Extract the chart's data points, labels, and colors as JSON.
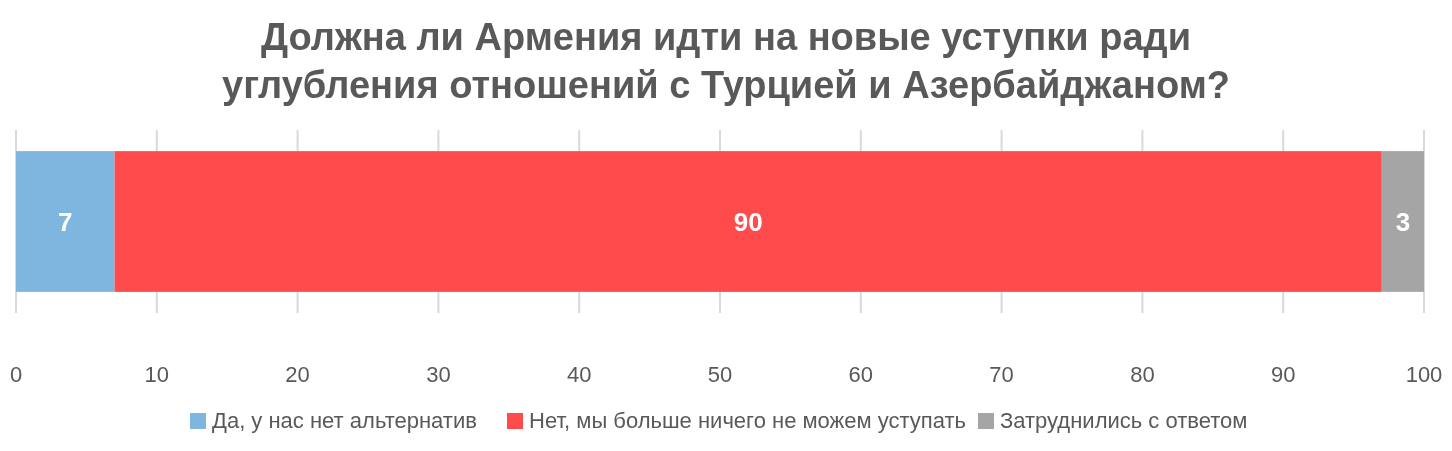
{
  "chart_data": {
    "type": "bar",
    "orientation": "horizontal",
    "stacked": true,
    "title": "Должна ли Армения идти на новые уступки ради углубления отношений с Турцией и Азербайджаном?",
    "categories": [
      null
    ],
    "series": [
      {
        "name": "Да, у нас нет альтернатив",
        "color": "#7eb6e0",
        "values": [
          7
        ]
      },
      {
        "name": "Нет, мы больше ничего не можем уступать",
        "color": "#ff4b4b",
        "values": [
          90
        ]
      },
      {
        "name": "Затруднились с ответом",
        "color": "#a5a5a5",
        "values": [
          3
        ]
      }
    ],
    "xlim": [
      0,
      100
    ],
    "xticks": [
      0,
      10,
      20,
      30,
      40,
      50,
      60,
      70,
      80,
      90,
      100
    ],
    "grid": "x",
    "legend": "bottom",
    "data_labels": true
  }
}
